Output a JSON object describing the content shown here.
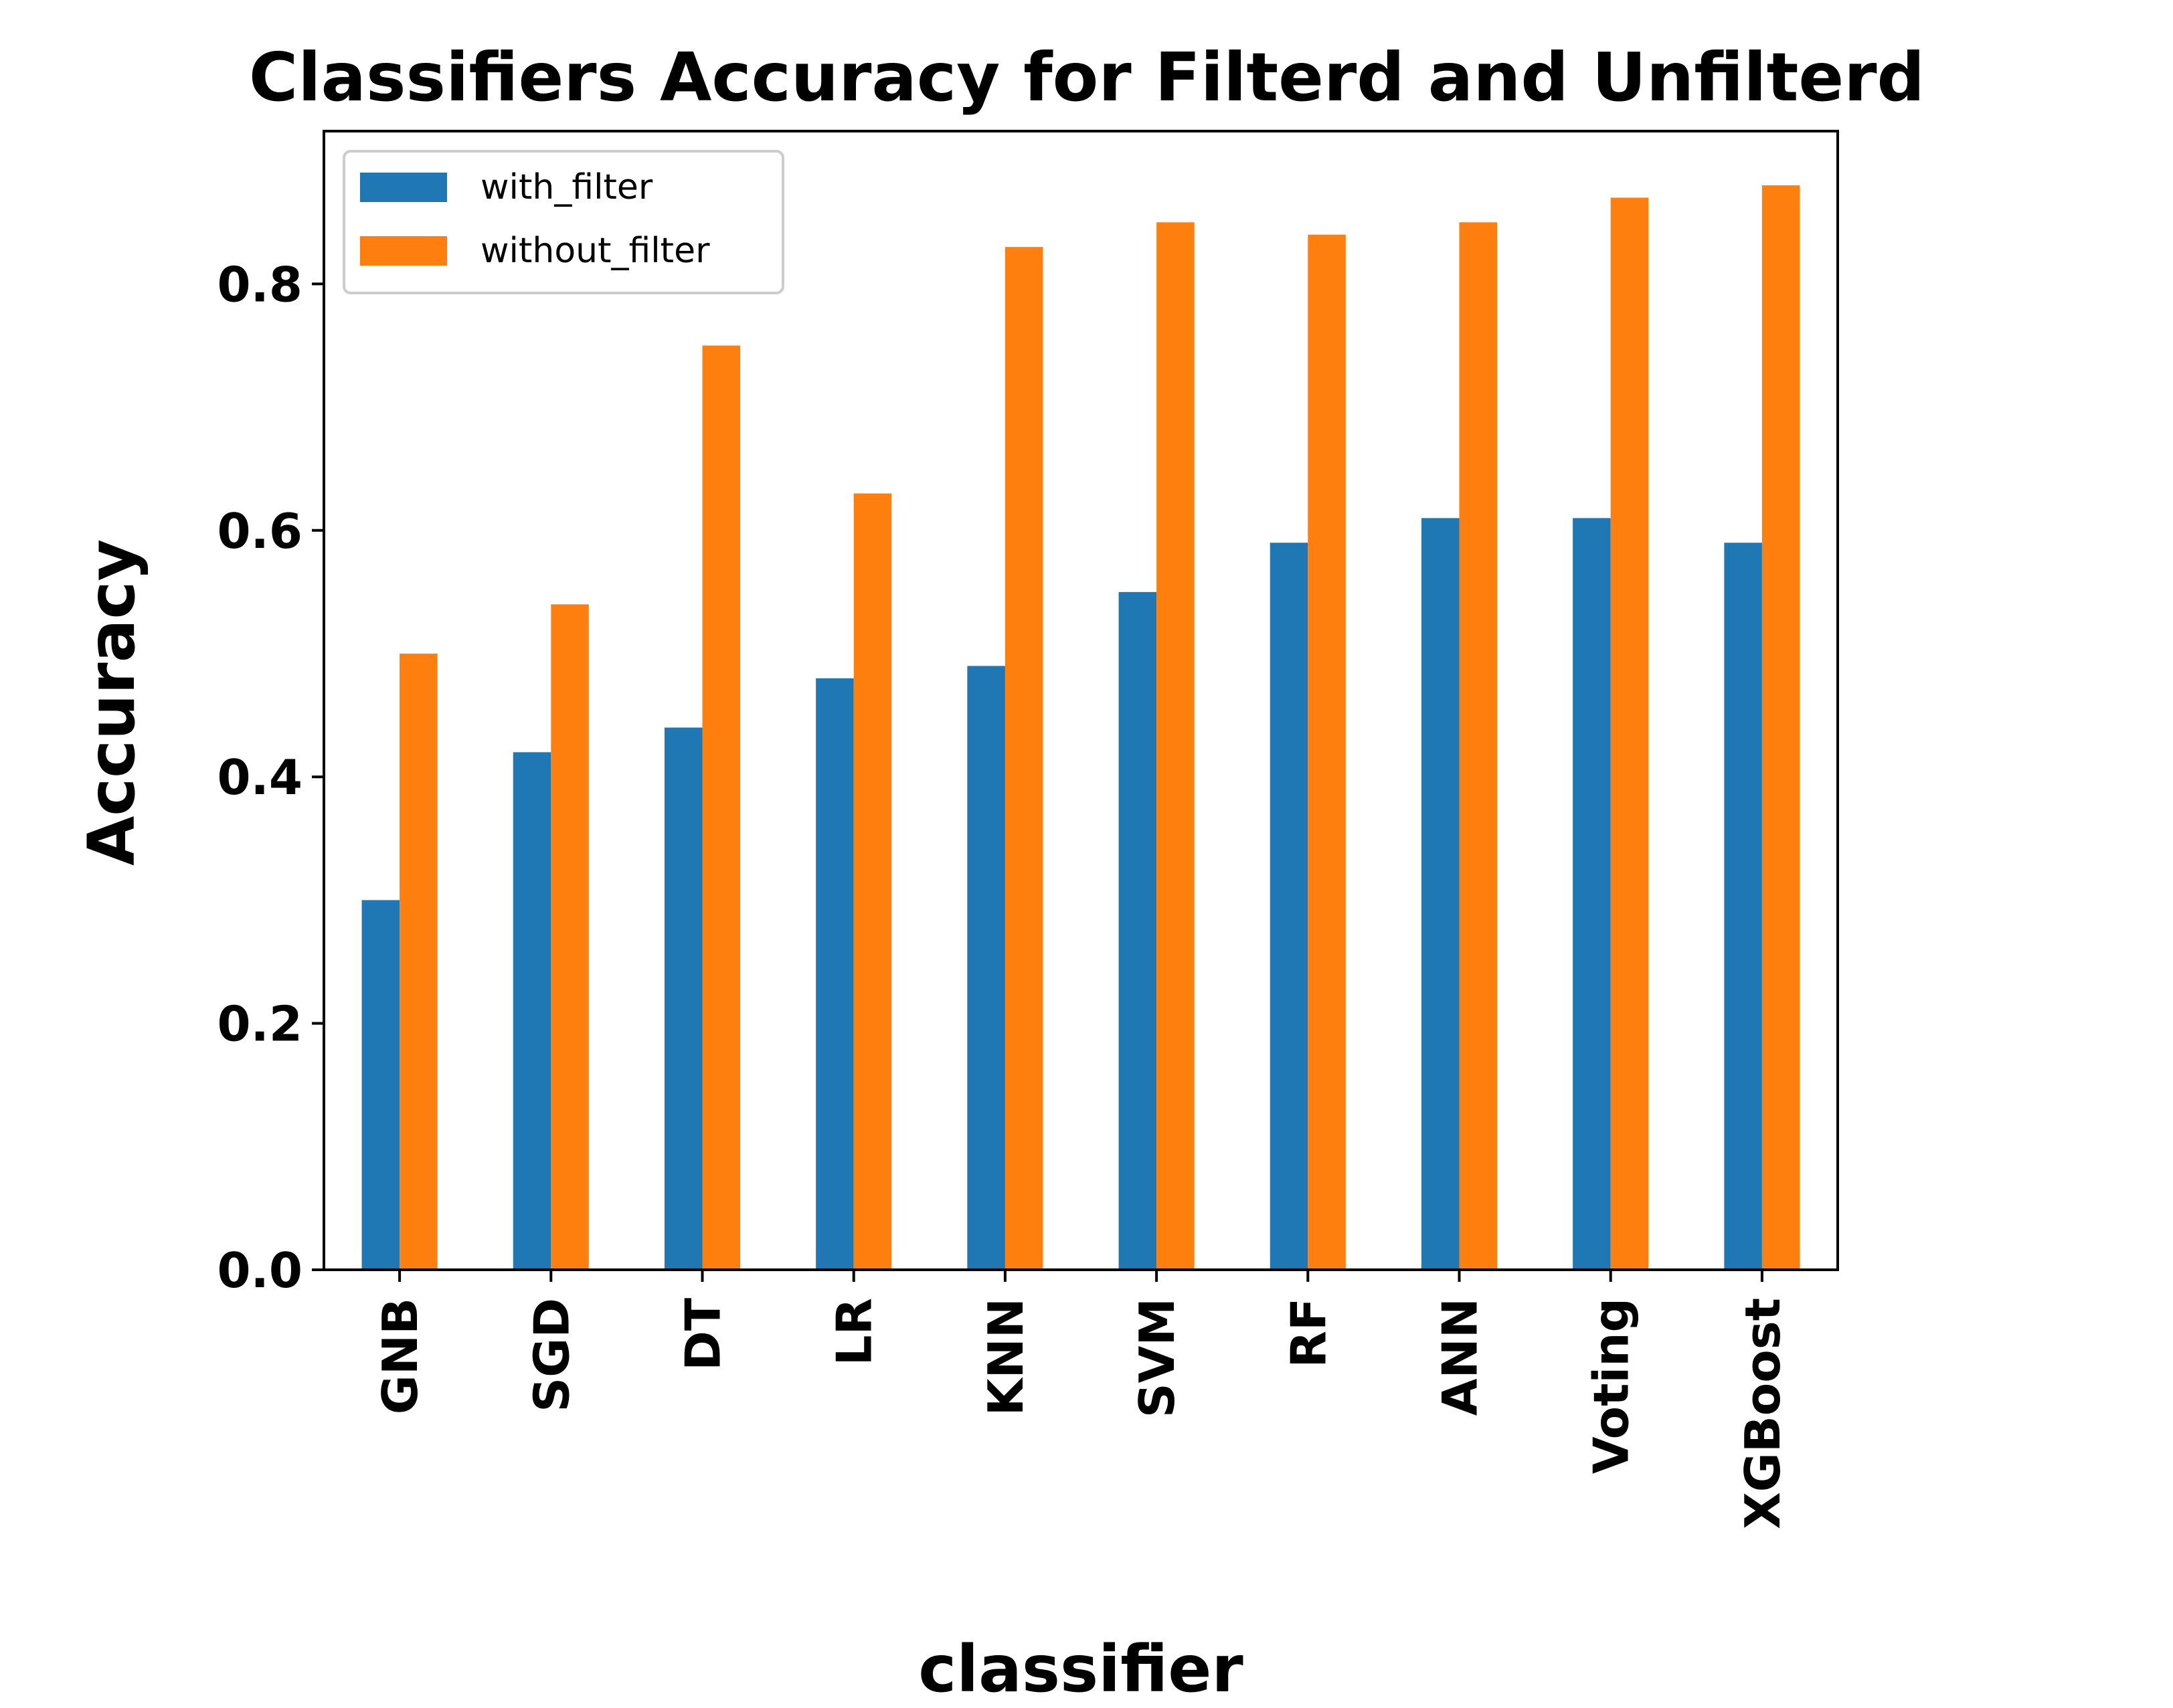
{
  "chart_data": {
    "type": "bar",
    "title": "Classifiers Accuracy for Filterd and Unfilterd",
    "xlabel": "classifier",
    "ylabel": "Accuracy",
    "categories": [
      "GNB",
      "SGD",
      "DT",
      "LR",
      "KNN",
      "SVM",
      "RF",
      "ANN",
      "Voting",
      "XGBoost"
    ],
    "series": [
      {
        "name": "with_filter",
        "color": "#1f77b4",
        "values": [
          0.3,
          0.42,
          0.44,
          0.48,
          0.49,
          0.55,
          0.59,
          0.61,
          0.61,
          0.59
        ]
      },
      {
        "name": "without_filter",
        "color": "#ff7f0e",
        "values": [
          0.5,
          0.54,
          0.75,
          0.63,
          0.83,
          0.85,
          0.84,
          0.85,
          0.87,
          0.88
        ]
      }
    ],
    "ylim": [
      0,
      0.924
    ],
    "yticks": [
      "0.0",
      "0.2",
      "0.4",
      "0.6",
      "0.8"
    ],
    "grid": false,
    "legend_position": "top-left"
  }
}
